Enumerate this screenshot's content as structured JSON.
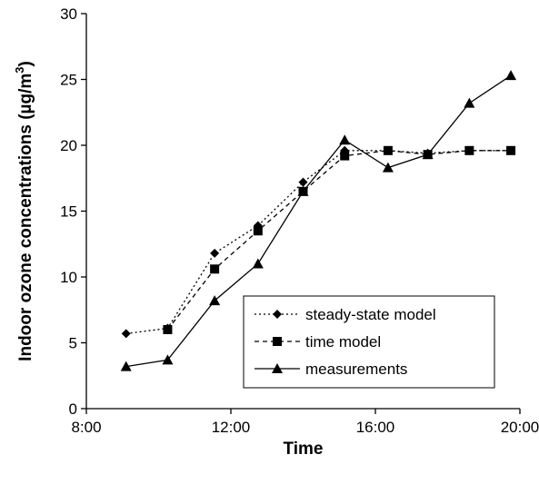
{
  "chart_data": {
    "type": "line",
    "xlabel": "Time",
    "ylabel_main": "Indoor ozone concentrations (µg/m",
    "ylabel_sup": "3",
    "ylabel_close": ")",
    "x_ticks": [
      {
        "value": 8,
        "label": "8:00"
      },
      {
        "value": 12,
        "label": "12:00"
      },
      {
        "value": 16,
        "label": "16:00"
      },
      {
        "value": 20,
        "label": "20:00"
      }
    ],
    "y_ticks": [
      {
        "value": 0,
        "label": "0"
      },
      {
        "value": 5,
        "label": "5"
      },
      {
        "value": 10,
        "label": "10"
      },
      {
        "value": 15,
        "label": "15"
      },
      {
        "value": 20,
        "label": "20"
      },
      {
        "value": 25,
        "label": "25"
      },
      {
        "value": 30,
        "label": "30"
      }
    ],
    "xlim": [
      8,
      20
    ],
    "ylim": [
      0,
      30
    ],
    "grid": false,
    "legend_position": "bottom-right",
    "series": [
      {
        "name": "steady-state model",
        "marker": "diamond",
        "line_style": "dotted",
        "points": [
          {
            "x": 9.1,
            "y": 5.7
          },
          {
            "x": 10.25,
            "y": 6.1
          },
          {
            "x": 11.55,
            "y": 11.8
          },
          {
            "x": 12.75,
            "y": 13.9
          },
          {
            "x": 14.0,
            "y": 17.2
          },
          {
            "x": 15.15,
            "y": 19.6
          },
          {
            "x": 16.35,
            "y": 19.6
          },
          {
            "x": 17.45,
            "y": 19.4
          },
          {
            "x": 18.6,
            "y": 19.6
          },
          {
            "x": 19.75,
            "y": 19.6
          }
        ]
      },
      {
        "name": "time model",
        "marker": "square",
        "line_style": "dashed",
        "points": [
          {
            "x": 10.25,
            "y": 6.0
          },
          {
            "x": 11.55,
            "y": 10.6
          },
          {
            "x": 12.75,
            "y": 13.5
          },
          {
            "x": 14.0,
            "y": 16.5
          },
          {
            "x": 15.15,
            "y": 19.2
          },
          {
            "x": 16.35,
            "y": 19.6
          },
          {
            "x": 17.45,
            "y": 19.3
          },
          {
            "x": 18.6,
            "y": 19.6
          },
          {
            "x": 19.75,
            "y": 19.6
          }
        ]
      },
      {
        "name": "measurements",
        "marker": "triangle",
        "line_style": "solid",
        "points": [
          {
            "x": 9.1,
            "y": 3.2
          },
          {
            "x": 10.25,
            "y": 3.7
          },
          {
            "x": 11.55,
            "y": 8.2
          },
          {
            "x": 12.75,
            "y": 11.0
          },
          {
            "x": 14.0,
            "y": 16.5
          },
          {
            "x": 15.15,
            "y": 20.4
          },
          {
            "x": 16.35,
            "y": 18.3
          },
          {
            "x": 17.45,
            "y": 19.3
          },
          {
            "x": 18.6,
            "y": 23.2
          },
          {
            "x": 19.75,
            "y": 25.3
          }
        ]
      }
    ]
  }
}
